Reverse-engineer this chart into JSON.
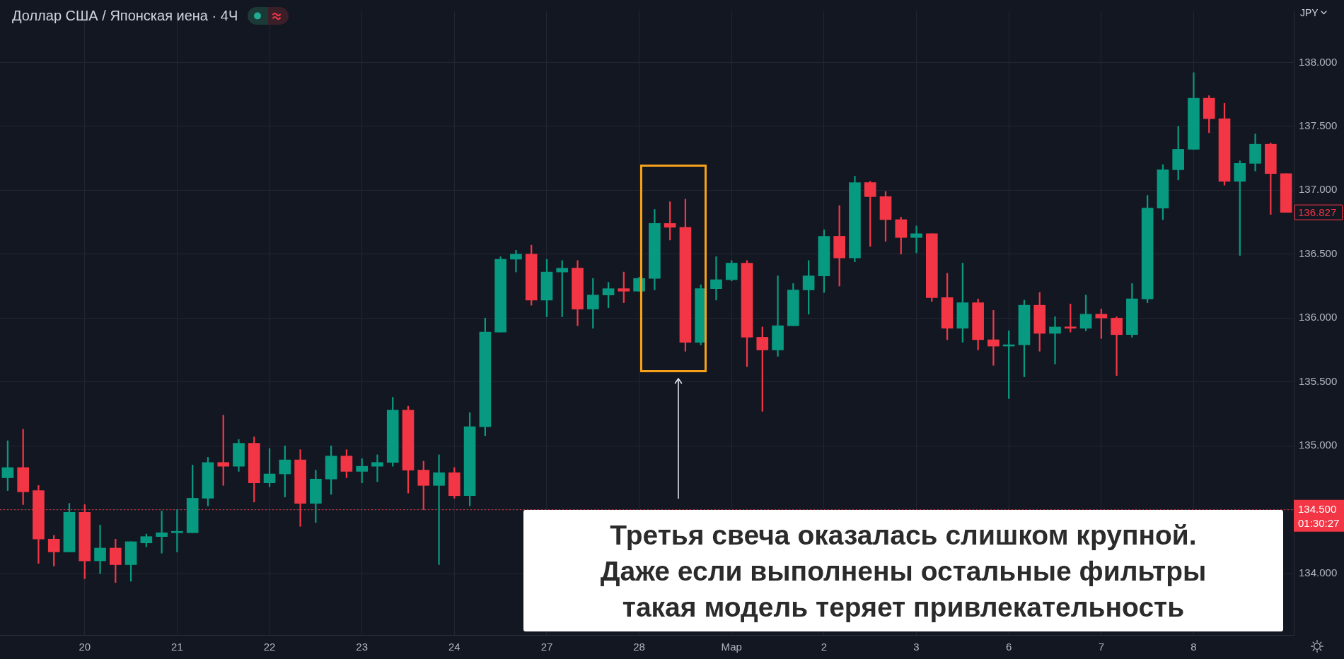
{
  "chart_data": {
    "type": "candlestick",
    "title": "Доллар США / Японская иена · 4Ч",
    "ylabel": "JPY",
    "categories": [
      null,
      null,
      null,
      null,
      null,
      "20",
      null,
      null,
      null,
      null,
      null,
      "21",
      null,
      null,
      null,
      null,
      null,
      "22",
      null,
      null,
      null,
      null,
      null,
      "23",
      null,
      null,
      null,
      null,
      null,
      "24",
      null,
      null,
      null,
      null,
      null,
      "27",
      null,
      null,
      null,
      null,
      null,
      "28",
      null,
      null,
      null,
      null,
      null,
      "Мар",
      null,
      null,
      null,
      null,
      null,
      "2",
      null,
      null,
      null,
      null,
      null,
      "3",
      null,
      null,
      null,
      null,
      null,
      "6",
      null,
      null,
      null,
      null,
      null,
      "7",
      null,
      null,
      null,
      null,
      null,
      "8",
      null,
      null,
      null,
      null,
      null,
      null
    ],
    "ohlc": [
      [
        134.75,
        135.04,
        134.65,
        134.83
      ],
      [
        134.83,
        135.13,
        134.54,
        134.64
      ],
      [
        134.65,
        134.69,
        134.08,
        134.27
      ],
      [
        134.27,
        134.3,
        134.06,
        134.17
      ],
      [
        134.17,
        134.55,
        134.17,
        134.48
      ],
      [
        134.48,
        134.54,
        133.96,
        134.1
      ],
      [
        134.1,
        134.38,
        134.0,
        134.2
      ],
      [
        134.2,
        134.27,
        133.93,
        134.07
      ],
      [
        134.07,
        134.25,
        133.94,
        134.25
      ],
      [
        134.24,
        134.31,
        134.21,
        134.29
      ],
      [
        134.29,
        134.49,
        134.16,
        134.32
      ],
      [
        134.32,
        134.5,
        134.17,
        134.32
      ],
      [
        134.32,
        134.85,
        134.32,
        134.59
      ],
      [
        134.59,
        134.91,
        134.53,
        134.87
      ],
      [
        134.87,
        135.24,
        134.69,
        134.84
      ],
      [
        134.84,
        135.05,
        134.8,
        135.02
      ],
      [
        135.02,
        135.07,
        134.56,
        134.71
      ],
      [
        134.71,
        134.98,
        134.68,
        134.78
      ],
      [
        134.78,
        135.0,
        134.6,
        134.89
      ],
      [
        134.89,
        134.97,
        134.37,
        134.55
      ],
      [
        134.55,
        134.81,
        134.4,
        134.74
      ],
      [
        134.74,
        135.0,
        134.62,
        134.92
      ],
      [
        134.92,
        134.97,
        134.75,
        134.8
      ],
      [
        134.8,
        134.9,
        134.71,
        134.84
      ],
      [
        134.84,
        134.93,
        134.72,
        134.87
      ],
      [
        134.87,
        135.38,
        134.84,
        135.28
      ],
      [
        135.28,
        135.31,
        134.63,
        134.81
      ],
      [
        134.81,
        134.88,
        134.5,
        134.69
      ],
      [
        134.69,
        134.93,
        134.07,
        134.79
      ],
      [
        134.79,
        134.83,
        134.59,
        134.61
      ],
      [
        134.61,
        135.26,
        134.53,
        135.15
      ],
      [
        135.15,
        136.0,
        135.08,
        135.89
      ],
      [
        135.89,
        136.48,
        135.89,
        136.46
      ],
      [
        136.46,
        136.53,
        136.36,
        136.5
      ],
      [
        136.5,
        136.57,
        136.1,
        136.14
      ],
      [
        136.14,
        136.46,
        136.01,
        136.36
      ],
      [
        136.36,
        136.45,
        136.01,
        136.39
      ],
      [
        136.39,
        136.45,
        135.94,
        136.07
      ],
      [
        136.07,
        136.31,
        135.92,
        136.18
      ],
      [
        136.18,
        136.28,
        136.08,
        136.23
      ],
      [
        136.23,
        136.36,
        136.12,
        136.21
      ],
      [
        136.21,
        136.32,
        136.21,
        136.31
      ],
      [
        136.31,
        136.85,
        136.22,
        136.74
      ],
      [
        136.74,
        136.91,
        136.61,
        136.71
      ],
      [
        136.71,
        136.93,
        135.74,
        135.81
      ],
      [
        135.81,
        136.26,
        135.79,
        136.23
      ],
      [
        136.23,
        136.48,
        136.14,
        136.3
      ],
      [
        136.3,
        136.45,
        136.29,
        136.43
      ],
      [
        136.43,
        136.45,
        135.62,
        135.85
      ],
      [
        135.85,
        135.93,
        135.27,
        135.75
      ],
      [
        135.75,
        136.33,
        135.7,
        135.94
      ],
      [
        135.94,
        136.27,
        135.94,
        136.22
      ],
      [
        136.22,
        136.45,
        136.03,
        136.33
      ],
      [
        136.33,
        136.69,
        136.2,
        136.64
      ],
      [
        136.64,
        136.88,
        136.25,
        136.47
      ],
      [
        136.47,
        137.11,
        136.44,
        137.06
      ],
      [
        137.06,
        137.07,
        136.56,
        136.95
      ],
      [
        136.95,
        136.99,
        136.6,
        136.77
      ],
      [
        136.77,
        136.79,
        136.5,
        136.63
      ],
      [
        136.63,
        136.72,
        136.51,
        136.66
      ],
      [
        136.66,
        136.66,
        136.13,
        136.16
      ],
      [
        136.16,
        136.35,
        135.83,
        135.92
      ],
      [
        135.92,
        136.43,
        135.81,
        136.12
      ],
      [
        136.12,
        136.15,
        135.75,
        135.83
      ],
      [
        135.83,
        136.06,
        135.63,
        135.78
      ],
      [
        135.78,
        135.9,
        135.37,
        135.79
      ],
      [
        135.79,
        136.14,
        135.54,
        136.1
      ],
      [
        136.1,
        136.2,
        135.74,
        135.88
      ],
      [
        135.88,
        136.01,
        135.64,
        135.93
      ],
      [
        135.93,
        136.11,
        135.89,
        135.92
      ],
      [
        135.92,
        136.18,
        135.9,
        136.03
      ],
      [
        136.03,
        136.07,
        135.84,
        136.0
      ],
      [
        136.0,
        136.01,
        135.55,
        135.87
      ],
      [
        135.87,
        136.27,
        135.85,
        136.15
      ],
      [
        136.15,
        136.96,
        136.12,
        136.86
      ],
      [
        136.86,
        137.2,
        136.77,
        137.16
      ],
      [
        137.16,
        137.5,
        137.08,
        137.32
      ],
      [
        137.32,
        137.92,
        137.32,
        137.72
      ],
      [
        137.72,
        137.74,
        137.45,
        137.56
      ],
      [
        137.56,
        137.68,
        137.04,
        137.07
      ],
      [
        137.07,
        137.23,
        136.49,
        137.21
      ],
      [
        137.21,
        137.44,
        137.15,
        137.36
      ],
      [
        137.36,
        137.37,
        136.81,
        137.13
      ],
      [
        137.13,
        137.13,
        136.827,
        136.827
      ]
    ],
    "colors": [
      "#089981",
      "#f23645",
      "#f23645",
      "#f23645",
      "#089981",
      "#f23645",
      "#089981",
      "#f23645",
      "#089981",
      "#089981",
      "#089981",
      "#089981",
      "#089981",
      "#089981",
      "#f23645",
      "#089981",
      "#f23645",
      "#089981",
      "#089981",
      "#f23645",
      "#089981",
      "#089981",
      "#f23645",
      "#089981",
      "#089981",
      "#089981",
      "#f23645",
      "#f23645",
      "#089981",
      "#f23645",
      "#089981",
      "#089981",
      "#089981",
      "#089981",
      "#f23645",
      "#089981",
      "#089981",
      "#f23645",
      "#089981",
      "#089981",
      "#f23645",
      "#089981",
      "#089981",
      "#f23645",
      "#f23645",
      "#089981",
      "#089981",
      "#089981",
      "#f23645",
      "#f23645",
      "#089981",
      "#089981",
      "#089981",
      "#089981",
      "#f23645",
      "#089981",
      "#f23645",
      "#f23645",
      "#f23645",
      "#089981",
      "#f23645",
      "#f23645",
      "#089981",
      "#f23645",
      "#f23645",
      "#089981",
      "#089981",
      "#f23645",
      "#089981",
      "#f23645",
      "#089981",
      "#f23645",
      "#f23645",
      "#089981",
      "#089981",
      "#089981",
      "#089981",
      "#089981",
      "#f23645",
      "#f23645",
      "#089981",
      "#089981",
      "#f23645",
      "#f23645"
    ],
    "ylim": [
      133.52,
      138.4
    ],
    "yticks": [
      {
        "value": 134,
        "label": "134.000"
      },
      {
        "value": 134.5,
        "label": null
      },
      {
        "value": 135,
        "label": "135.000"
      },
      {
        "value": 135.5,
        "label": "135.500"
      },
      {
        "value": 136,
        "label": "136.000"
      },
      {
        "value": 136.5,
        "label": "136.500"
      },
      {
        "value": 137,
        "label": "137.000"
      },
      {
        "value": 137.5,
        "label": "137.500"
      },
      {
        "value": 138,
        "label": "138.000"
      }
    ],
    "grid": true,
    "ref_lines": [
      {
        "axis": "y",
        "value": 134.5,
        "label": "134.500",
        "color": "#f23645",
        "line_style": "dotted"
      }
    ],
    "annotations": [
      "136.827",
      "01:30:27",
      "Третья свеча оказалась слишком крупной.\nДаже если выполнены остальные фильтры\nтакая модель теряет привлекательность"
    ]
  }
}
